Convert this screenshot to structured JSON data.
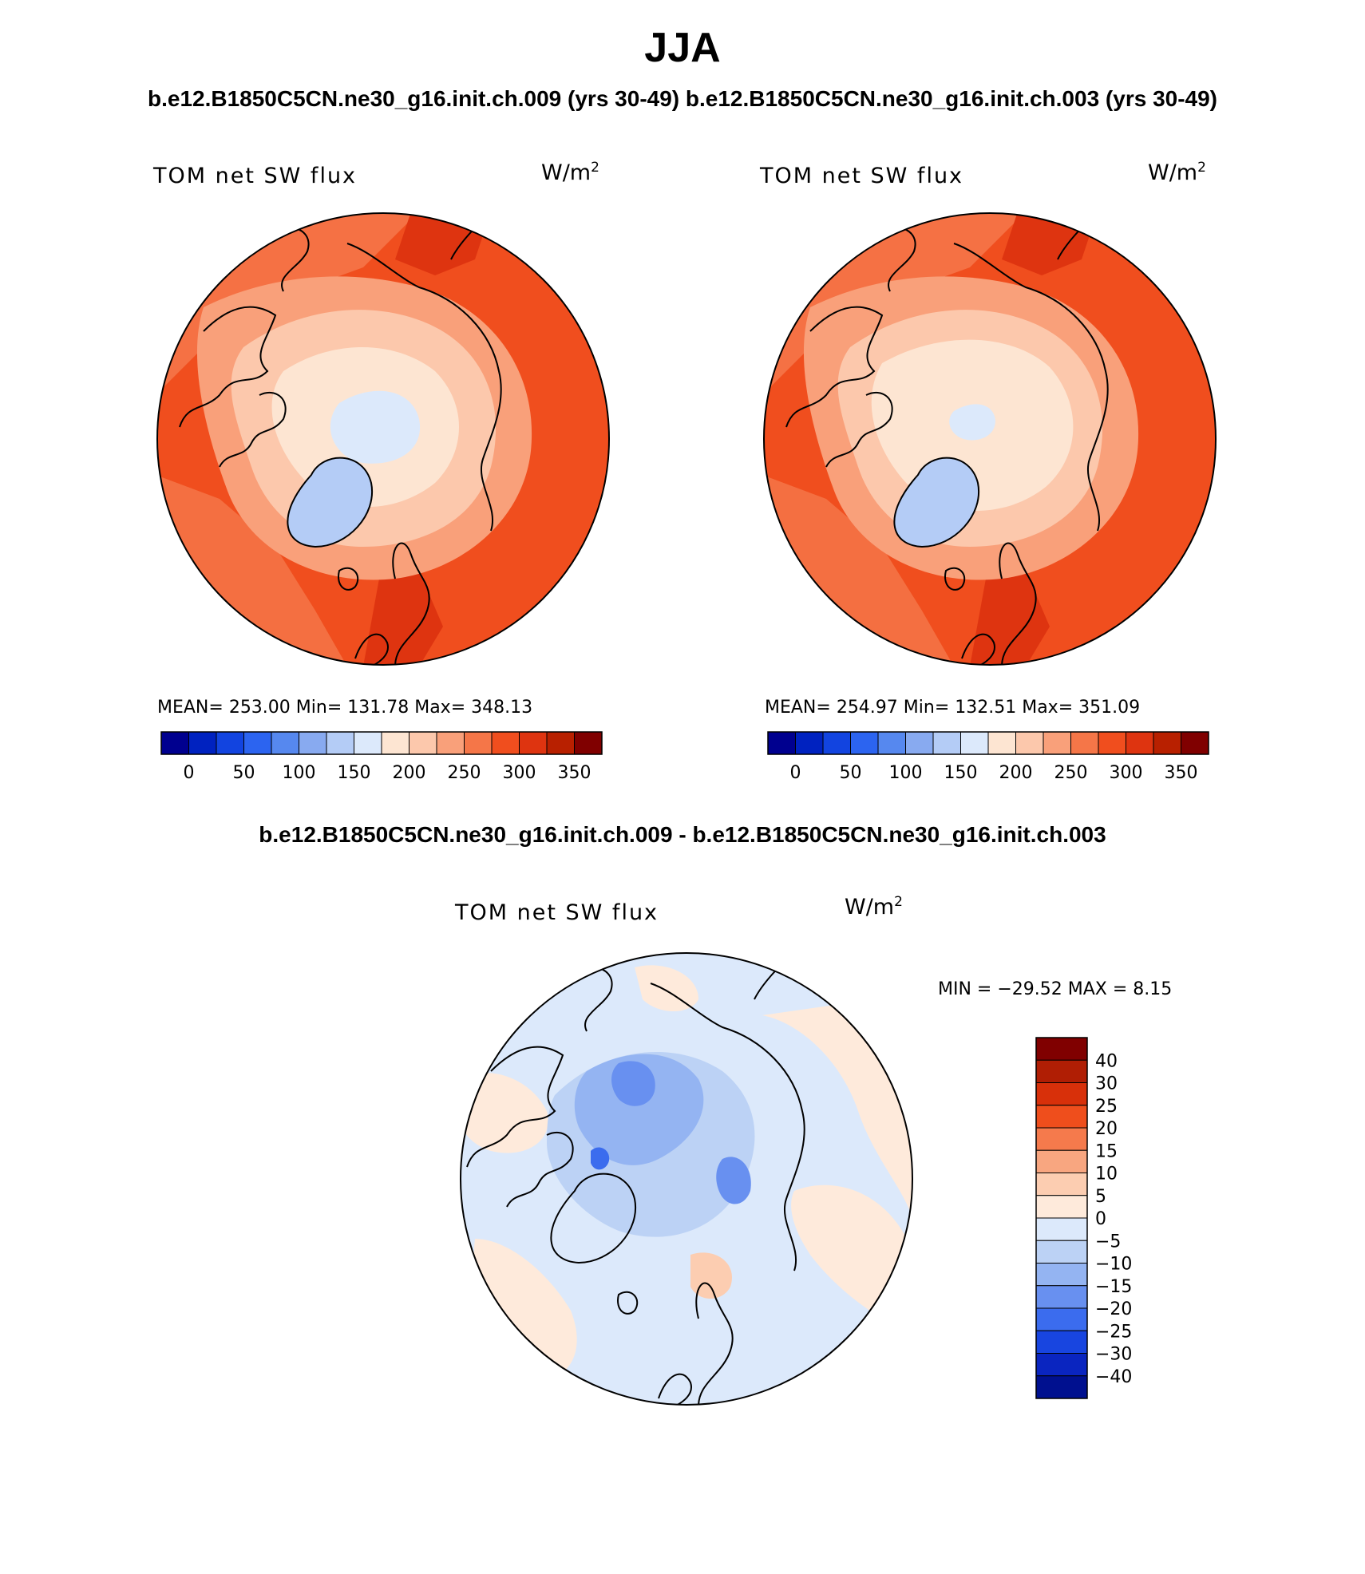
{
  "title": "JJA",
  "top_subtitle": "b.e12.B1850C5CN.ne30_g16.init.ch.009 (yrs 30-49)  b.e12.B1850C5CN.ne30_g16.init.ch.003 (yrs 30-49)",
  "diff_subtitle": "b.e12.B1850C5CN.ne30_g16.init.ch.009 - b.e12.B1850C5CN.ne30_g16.init.ch.003",
  "panels": [
    {
      "variable": "TOM net SW flux",
      "units": "W/m",
      "units_exp": "2",
      "stats": "MEAN= 253.00   Min= 131.78   Max= 348.13"
    },
    {
      "variable": "TOM net SW flux",
      "units": "W/m",
      "units_exp": "2",
      "stats": "MEAN= 254.97   Min= 132.51   Max= 351.09"
    }
  ],
  "diff_panel": {
    "variable": "TOM net SW flux",
    "units": "W/m",
    "units_exp": "2",
    "stats": "MIN = −29.52  MAX =    8.15"
  },
  "abs_colorbar": {
    "colors": [
      "#00008f",
      "#0022c0",
      "#1244e0",
      "#2c64f0",
      "#5688ef",
      "#88aaf0",
      "#b4ccf6",
      "#dce9fb",
      "#fde5d2",
      "#fcc8ac",
      "#f9a07a",
      "#f57648",
      "#f04e1e",
      "#de3410",
      "#b82000",
      "#800000"
    ],
    "tick_labels": [
      "0",
      "50",
      "100",
      "150",
      "200",
      "250",
      "300",
      "350"
    ]
  },
  "diff_colorbar": {
    "colors": [
      "#800000",
      "#b01e04",
      "#d8300a",
      "#ef4e1c",
      "#f57a4c",
      "#f8a680",
      "#fccdb1",
      "#feeadb",
      "#dce9fb",
      "#bcd2f5",
      "#94b4f2",
      "#6890f0",
      "#3b6cee",
      "#1845e0",
      "#0a25c0",
      "#00108f"
    ],
    "tick_labels": [
      "40",
      "30",
      "25",
      "20",
      "15",
      "10",
      "5",
      "0",
      "−5",
      "−10",
      "−15",
      "−20",
      "−25",
      "−30",
      "−40"
    ]
  }
}
